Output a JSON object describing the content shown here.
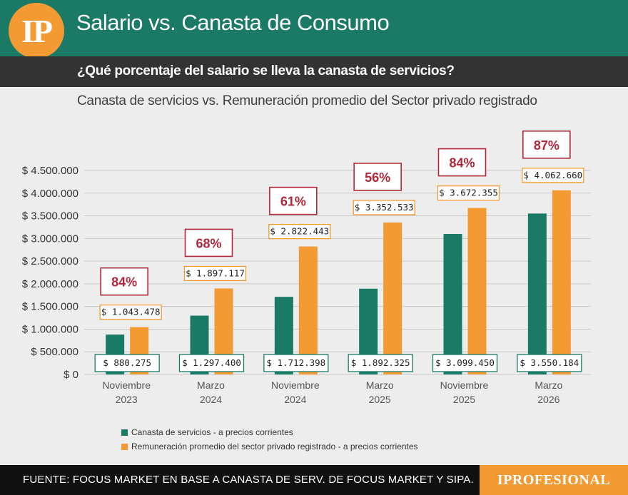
{
  "header": {
    "logo_text": "IP",
    "title": "Salario vs. Canasta de Consumo",
    "subtitle": "¿Qué porcentaje del salario se lleva la canasta de servicios?",
    "accent_color": "#1b7a66",
    "brand_color": "#f49a32"
  },
  "footer": {
    "source": "FUENTE: FOCUS MARKET EN BASE A CANASTA DE SERV. DE FOCUS MARKET Y SIPA.",
    "brand": "IPROFESIONAL"
  },
  "chart_data": {
    "type": "bar",
    "title": "Canasta de servicios vs. Remuneración promedio del Sector privado registrado",
    "categories": [
      [
        "Noviembre",
        "2023"
      ],
      [
        "Marzo",
        "2024"
      ],
      [
        "Noviembre",
        "2024"
      ],
      [
        "Marzo",
        "2025"
      ],
      [
        "Noviembre",
        "2025"
      ],
      [
        "Marzo",
        "2026"
      ]
    ],
    "series": [
      {
        "name": "Canasta de servicios - a precios corrientes",
        "color": "#1b7a66",
        "values": [
          880275,
          1297400,
          1712398,
          1892325,
          3099450,
          3550184
        ],
        "labels": [
          "$ 880.275",
          "$ 1.297.400",
          "$ 1.712.398",
          "$ 1.892.325",
          "$ 3.099.450",
          "$ 3.550.184"
        ]
      },
      {
        "name": "Remuneración promedio del sector privado registrado - a precios corrientes",
        "color": "#f49a32",
        "values": [
          1043478,
          1897117,
          2822443,
          3352533,
          3672355,
          4062660
        ],
        "labels": [
          "$ 1.043.478",
          "$ 1.897.117",
          "$ 2.822.443",
          "$ 3.352.533",
          "$ 3.672.355",
          "$ 4.062.660"
        ]
      }
    ],
    "percentages": [
      "84%",
      "68%",
      "61%",
      "56%",
      "84%",
      "87%"
    ],
    "ylim": [
      0,
      4500000
    ],
    "yticks": [
      0,
      500000,
      1000000,
      1500000,
      2000000,
      2500000,
      3000000,
      3500000,
      4000000,
      4500000
    ],
    "ytick_labels": [
      "$ 0",
      "$ 500.000",
      "$ 1.000.000",
      "$ 1.500.000",
      "$ 2.000.000",
      "$ 2.500.000",
      "$ 3.000.000",
      "$ 3.500.000",
      "$ 4.000.000",
      "$ 4.500.000"
    ],
    "grid": true,
    "legend_position": "bottom-left"
  }
}
